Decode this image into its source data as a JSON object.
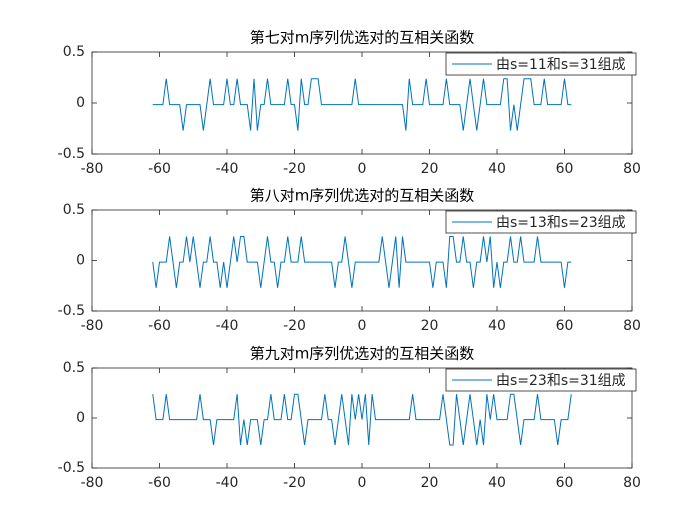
{
  "chart_data": [
    {
      "type": "line",
      "title": "第七对m序列优选对的互相关函数",
      "legend": "northeast",
      "xlim": [
        -80,
        80
      ],
      "ylim": [
        -0.5,
        0.5
      ],
      "xticks": [
        -80,
        -60,
        -40,
        -20,
        0,
        20,
        40,
        60,
        80
      ],
      "yticks": [
        -0.5,
        0,
        0.5
      ],
      "x": [
        -62,
        -61,
        -60,
        -59,
        -58,
        -57,
        -56,
        -55,
        -54,
        -53,
        -52,
        -51,
        -50,
        -49,
        -48,
        -47,
        -46,
        -45,
        -44,
        -43,
        -42,
        -41,
        -40,
        -39,
        -38,
        -37,
        -36,
        -35,
        -34,
        -33,
        -32,
        -31,
        -30,
        -29,
        -28,
        -27,
        -26,
        -25,
        -24,
        -23,
        -22,
        -21,
        -20,
        -19,
        -18,
        -17,
        -16,
        -15,
        -14,
        -13,
        -12,
        -11,
        -10,
        -9,
        -8,
        -7,
        -6,
        -5,
        -4,
        -3,
        -2,
        -1,
        0,
        1,
        2,
        3,
        4,
        5,
        6,
        7,
        8,
        9,
        10,
        11,
        12,
        13,
        14,
        15,
        16,
        17,
        18,
        19,
        20,
        21,
        22,
        23,
        24,
        25,
        26,
        27,
        28,
        29,
        30,
        31,
        32,
        33,
        34,
        35,
        36,
        37,
        38,
        39,
        40,
        41,
        42,
        43,
        44,
        45,
        46,
        47,
        48,
        49,
        50,
        51,
        52,
        53,
        54,
        55,
        56,
        57,
        58,
        59,
        60,
        61,
        62
      ],
      "series": [
        {
          "name": "由s=11和s=31组成",
          "color": "#0072bd",
          "values": [
            -0.016,
            -0.016,
            -0.016,
            -0.016,
            0.238,
            -0.016,
            -0.016,
            -0.016,
            -0.016,
            -0.27,
            -0.016,
            -0.016,
            -0.016,
            -0.016,
            -0.016,
            -0.27,
            -0.016,
            0.238,
            -0.016,
            -0.016,
            -0.016,
            -0.016,
            0.238,
            -0.016,
            -0.016,
            0.238,
            -0.016,
            -0.016,
            -0.016,
            -0.27,
            0.238,
            -0.27,
            -0.016,
            -0.016,
            0.238,
            -0.016,
            -0.016,
            -0.016,
            -0.016,
            -0.016,
            0.238,
            -0.016,
            -0.016,
            -0.27,
            0.238,
            -0.016,
            -0.016,
            0.238,
            0.238,
            0.238,
            -0.016,
            -0.016,
            -0.016,
            -0.016,
            -0.016,
            -0.016,
            -0.016,
            -0.016,
            -0.016,
            -0.016,
            0.238,
            -0.016,
            -0.016,
            -0.016,
            -0.016,
            -0.016,
            -0.016,
            -0.016,
            -0.016,
            -0.016,
            -0.016,
            -0.016,
            -0.016,
            -0.016,
            -0.016,
            -0.27,
            0.238,
            -0.016,
            -0.016,
            -0.016,
            -0.016,
            0.238,
            -0.016,
            -0.016,
            -0.016,
            -0.016,
            -0.016,
            0.238,
            -0.016,
            -0.016,
            -0.016,
            -0.016,
            -0.27,
            -0.016,
            0.238,
            -0.016,
            -0.27,
            -0.016,
            0.238,
            -0.016,
            -0.016,
            -0.016,
            -0.016,
            -0.016,
            0.238,
            0.238,
            -0.27,
            -0.016,
            -0.27,
            -0.016,
            0.238,
            0.238,
            0.238,
            -0.016,
            -0.016,
            -0.016,
            0.238,
            -0.016,
            -0.016,
            -0.016,
            -0.016,
            -0.016,
            0.238,
            -0.016,
            -0.016
          ]
        }
      ]
    },
    {
      "type": "line",
      "title": "第八对m序列优选对的互相关函数",
      "legend": "northeast",
      "xlim": [
        -80,
        80
      ],
      "ylim": [
        -0.5,
        0.5
      ],
      "xticks": [
        -80,
        -60,
        -40,
        -20,
        0,
        20,
        40,
        60,
        80
      ],
      "yticks": [
        -0.5,
        0,
        0.5
      ],
      "x": [
        -62,
        -61,
        -60,
        -59,
        -58,
        -57,
        -56,
        -55,
        -54,
        -53,
        -52,
        -51,
        -50,
        -49,
        -48,
        -47,
        -46,
        -45,
        -44,
        -43,
        -42,
        -41,
        -40,
        -39,
        -38,
        -37,
        -36,
        -35,
        -34,
        -33,
        -32,
        -31,
        -30,
        -29,
        -28,
        -27,
        -26,
        -25,
        -24,
        -23,
        -22,
        -21,
        -20,
        -19,
        -18,
        -17,
        -16,
        -15,
        -14,
        -13,
        -12,
        -11,
        -10,
        -9,
        -8,
        -7,
        -6,
        -5,
        -4,
        -3,
        -2,
        -1,
        0,
        1,
        2,
        3,
        4,
        5,
        6,
        7,
        8,
        9,
        10,
        11,
        12,
        13,
        14,
        15,
        16,
        17,
        18,
        19,
        20,
        21,
        22,
        23,
        24,
        25,
        26,
        27,
        28,
        29,
        30,
        31,
        32,
        33,
        34,
        35,
        36,
        37,
        38,
        39,
        40,
        41,
        42,
        43,
        44,
        45,
        46,
        47,
        48,
        49,
        50,
        51,
        52,
        53,
        54,
        55,
        56,
        57,
        58,
        59,
        60,
        61,
        62
      ],
      "series": [
        {
          "name": "由s=13和s=23组成",
          "color": "#0072bd",
          "values": [
            -0.016,
            -0.27,
            -0.016,
            -0.016,
            -0.016,
            0.238,
            -0.016,
            -0.27,
            -0.016,
            -0.016,
            0.238,
            -0.016,
            0.238,
            -0.016,
            -0.27,
            -0.016,
            -0.016,
            0.238,
            -0.016,
            -0.016,
            -0.27,
            -0.016,
            -0.27,
            -0.016,
            0.238,
            -0.016,
            0.238,
            0.238,
            -0.016,
            -0.016,
            -0.016,
            -0.016,
            -0.27,
            -0.016,
            0.238,
            -0.016,
            -0.016,
            -0.27,
            -0.016,
            -0.016,
            0.238,
            -0.016,
            -0.016,
            -0.016,
            0.238,
            -0.016,
            -0.016,
            -0.016,
            -0.016,
            -0.016,
            -0.016,
            -0.016,
            -0.016,
            -0.016,
            -0.27,
            -0.016,
            -0.016,
            0.238,
            -0.016,
            -0.27,
            -0.016,
            -0.016,
            -0.016,
            -0.016,
            -0.016,
            -0.016,
            -0.016,
            -0.016,
            0.238,
            -0.016,
            -0.27,
            -0.016,
            0.238,
            -0.27,
            0.238,
            -0.016,
            -0.016,
            -0.016,
            -0.016,
            -0.016,
            -0.016,
            -0.016,
            -0.016,
            -0.27,
            -0.016,
            -0.016,
            -0.016,
            -0.27,
            0.238,
            0.238,
            -0.016,
            -0.016,
            0.238,
            -0.016,
            -0.016,
            -0.27,
            -0.016,
            -0.016,
            0.238,
            -0.016,
            0.238,
            -0.27,
            -0.016,
            -0.27,
            -0.016,
            -0.016,
            0.238,
            -0.016,
            -0.016,
            0.238,
            -0.016,
            -0.016,
            -0.016,
            -0.016,
            0.238,
            -0.016,
            -0.016,
            -0.016,
            -0.016,
            -0.016,
            -0.016,
            -0.016,
            -0.27,
            -0.016,
            -0.016
          ]
        }
      ]
    },
    {
      "type": "line",
      "title": "第九对m序列优选对的互相关函数",
      "legend": "northeast",
      "xlim": [
        -80,
        80
      ],
      "ylim": [
        -0.5,
        0.5
      ],
      "xticks": [
        -80,
        -60,
        -40,
        -20,
        0,
        20,
        40,
        60,
        80
      ],
      "yticks": [
        -0.5,
        0,
        0.5
      ],
      "x": [
        -62,
        -61,
        -60,
        -59,
        -58,
        -57,
        -56,
        -55,
        -54,
        -53,
        -52,
        -51,
        -50,
        -49,
        -48,
        -47,
        -46,
        -45,
        -44,
        -43,
        -42,
        -41,
        -40,
        -39,
        -38,
        -37,
        -36,
        -35,
        -34,
        -33,
        -32,
        -31,
        -30,
        -29,
        -28,
        -27,
        -26,
        -25,
        -24,
        -23,
        -22,
        -21,
        -20,
        -19,
        -18,
        -17,
        -16,
        -15,
        -14,
        -13,
        -12,
        -11,
        -10,
        -9,
        -8,
        -7,
        -6,
        -5,
        -4,
        -3,
        -2,
        -1,
        0,
        1,
        2,
        3,
        4,
        5,
        6,
        7,
        8,
        9,
        10,
        11,
        12,
        13,
        14,
        15,
        16,
        17,
        18,
        19,
        20,
        21,
        22,
        23,
        24,
        25,
        26,
        27,
        28,
        29,
        30,
        31,
        32,
        33,
        34,
        35,
        36,
        37,
        38,
        39,
        40,
        41,
        42,
        43,
        44,
        45,
        46,
        47,
        48,
        49,
        50,
        51,
        52,
        53,
        54,
        55,
        56,
        57,
        58,
        59,
        60,
        61,
        62
      ],
      "series": [
        {
          "name": "由s=23和s=31组成",
          "color": "#0072bd",
          "values": [
            0.238,
            -0.016,
            -0.016,
            -0.016,
            0.238,
            -0.016,
            -0.016,
            -0.016,
            -0.016,
            -0.016,
            -0.016,
            -0.016,
            -0.016,
            -0.016,
            0.238,
            -0.016,
            -0.016,
            -0.016,
            -0.27,
            -0.016,
            -0.016,
            -0.016,
            -0.016,
            -0.016,
            -0.016,
            0.238,
            -0.27,
            -0.016,
            -0.27,
            -0.016,
            -0.016,
            -0.016,
            -0.27,
            -0.016,
            -0.016,
            0.238,
            -0.016,
            -0.016,
            -0.016,
            0.238,
            -0.016,
            -0.016,
            0.238,
            0.238,
            -0.016,
            -0.27,
            -0.016,
            -0.016,
            -0.016,
            -0.016,
            -0.016,
            0.238,
            -0.016,
            -0.016,
            -0.27,
            -0.016,
            0.238,
            -0.016,
            -0.27,
            0.238,
            -0.016,
            0.238,
            -0.016,
            0.238,
            -0.27,
            0.238,
            -0.016,
            -0.016,
            -0.016,
            -0.016,
            -0.016,
            -0.016,
            -0.016,
            -0.016,
            -0.016,
            -0.016,
            -0.016,
            0.238,
            -0.016,
            -0.016,
            -0.016,
            -0.016,
            -0.016,
            -0.016,
            -0.016,
            -0.016,
            0.238,
            -0.016,
            -0.27,
            -0.27,
            0.238,
            -0.016,
            -0.27,
            -0.016,
            0.238,
            -0.016,
            -0.27,
            -0.016,
            -0.27,
            0.238,
            -0.016,
            0.238,
            -0.016,
            -0.016,
            -0.016,
            -0.016,
            0.238,
            0.238,
            -0.016,
            -0.27,
            -0.016,
            -0.016,
            -0.016,
            -0.016,
            0.238,
            -0.016,
            -0.016,
            -0.016,
            -0.016,
            -0.016,
            -0.27,
            -0.016,
            -0.016,
            -0.016,
            0.238
          ]
        }
      ]
    }
  ]
}
